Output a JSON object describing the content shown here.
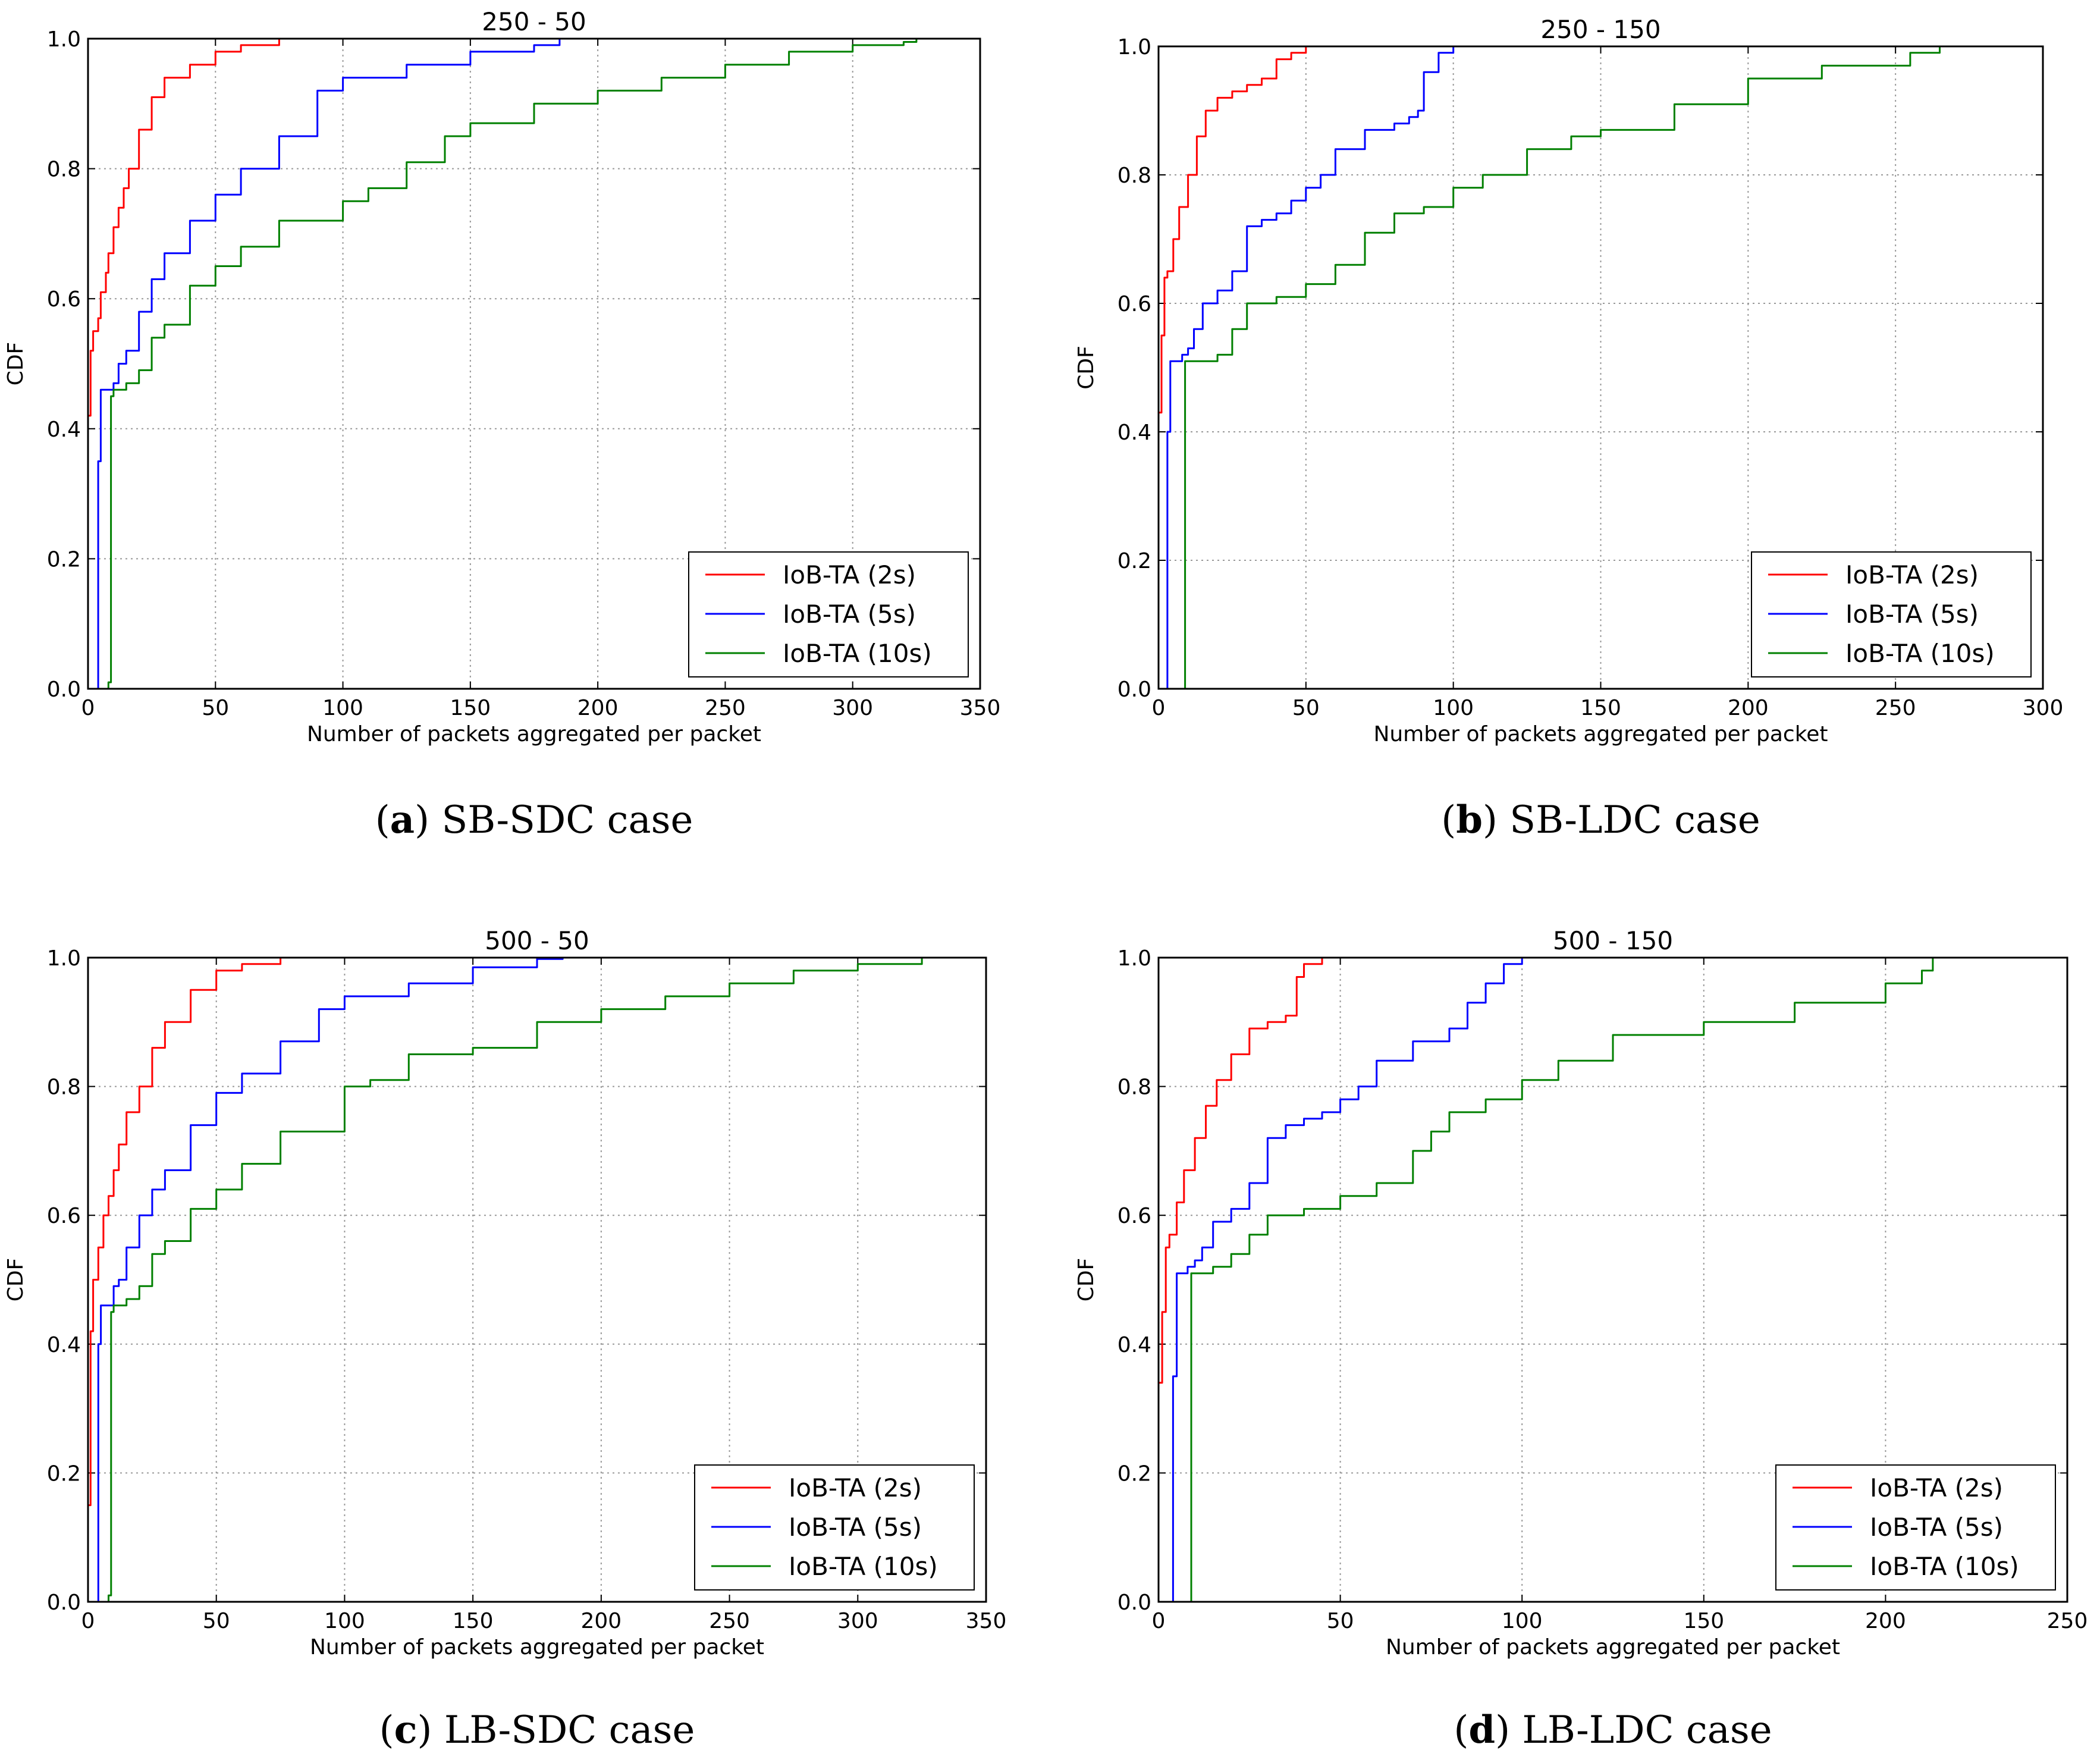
{
  "chart_data": [
    {
      "type": "line",
      "title": "250 - 50",
      "xlabel": "Number of packets aggregated per packet",
      "ylabel": "CDF",
      "xlim": [
        0,
        350
      ],
      "ylim": [
        0,
        1
      ],
      "xticks": [
        "0",
        "50",
        "100",
        "150",
        "200",
        "250",
        "300",
        "350"
      ],
      "yticks": [
        "0.0",
        "0.2",
        "0.4",
        "0.6",
        "0.8",
        "1.0"
      ],
      "caption": {
        "letter": "a",
        "text": "SB-SDC case"
      },
      "legend_position": "lower-right",
      "series": [
        {
          "name": "IoB-TA (2s)",
          "color": "#ff0000",
          "x": [
            0,
            1,
            2,
            4,
            5,
            7,
            8,
            10,
            12,
            14,
            16,
            20,
            25,
            30,
            40,
            50,
            60,
            75
          ],
          "y": [
            0.42,
            0.52,
            0.55,
            0.57,
            0.61,
            0.64,
            0.67,
            0.71,
            0.74,
            0.77,
            0.8,
            0.86,
            0.91,
            0.94,
            0.96,
            0.98,
            0.99,
            1.0
          ]
        },
        {
          "name": "IoB-TA (5s)",
          "color": "#0000ff",
          "x": [
            1,
            3,
            4,
            5,
            8,
            10,
            12,
            15,
            20,
            25,
            30,
            40,
            50,
            60,
            75,
            90,
            100,
            125,
            150,
            175,
            185
          ],
          "y": [
            0.0,
            0.0,
            0.35,
            0.46,
            0.46,
            0.47,
            0.5,
            0.52,
            0.58,
            0.63,
            0.67,
            0.72,
            0.76,
            0.8,
            0.85,
            0.92,
            0.94,
            0.96,
            0.98,
            0.99,
            1.0
          ]
        },
        {
          "name": "IoB-TA (10s)",
          "color": "#008000",
          "x": [
            0,
            5,
            8,
            9,
            10,
            15,
            20,
            25,
            30,
            40,
            50,
            60,
            75,
            100,
            110,
            125,
            140,
            150,
            175,
            200,
            225,
            250,
            275,
            300,
            320,
            325
          ],
          "y": [
            0.0,
            0.0,
            0.01,
            0.45,
            0.46,
            0.47,
            0.49,
            0.54,
            0.56,
            0.62,
            0.65,
            0.68,
            0.72,
            0.75,
            0.77,
            0.81,
            0.85,
            0.87,
            0.9,
            0.92,
            0.94,
            0.96,
            0.98,
            0.99,
            0.995,
            1.0
          ]
        }
      ]
    },
    {
      "type": "line",
      "title": "250 - 150",
      "xlabel": "Number of packets aggregated per packet",
      "ylabel": "CDF",
      "xlim": [
        0,
        300
      ],
      "ylim": [
        0,
        1
      ],
      "xticks": [
        "0",
        "50",
        "100",
        "150",
        "200",
        "250",
        "300"
      ],
      "yticks": [
        "0.0",
        "0.2",
        "0.4",
        "0.6",
        "0.8",
        "1.0"
      ],
      "caption": {
        "letter": "b",
        "text": "SB-LDC case"
      },
      "legend_position": "lower-right",
      "series": [
        {
          "name": "IoB-TA (2s)",
          "color": "#ff0000",
          "x": [
            0,
            1,
            2,
            3,
            5,
            7,
            10,
            13,
            16,
            20,
            25,
            30,
            35,
            40,
            45,
            50
          ],
          "y": [
            0.43,
            0.55,
            0.64,
            0.65,
            0.7,
            0.75,
            0.8,
            0.86,
            0.9,
            0.92,
            0.93,
            0.94,
            0.95,
            0.98,
            0.99,
            1.0
          ]
        },
        {
          "name": "IoB-TA (5s)",
          "color": "#0000ff",
          "x": [
            2,
            3,
            4,
            5,
            8,
            10,
            12,
            15,
            20,
            25,
            30,
            35,
            40,
            45,
            50,
            55,
            60,
            70,
            80,
            85,
            88,
            90,
            95,
            100
          ],
          "y": [
            0.0,
            0.4,
            0.51,
            0.51,
            0.52,
            0.53,
            0.56,
            0.6,
            0.62,
            0.65,
            0.72,
            0.73,
            0.74,
            0.76,
            0.78,
            0.8,
            0.84,
            0.87,
            0.88,
            0.89,
            0.9,
            0.96,
            0.99,
            1.0
          ]
        },
        {
          "name": "IoB-TA (10s)",
          "color": "#008000",
          "x": [
            7,
            8,
            9,
            10,
            20,
            25,
            30,
            40,
            50,
            60,
            70,
            80,
            90,
            100,
            110,
            125,
            140,
            150,
            175,
            200,
            225,
            245,
            255,
            265
          ],
          "y": [
            0.0,
            0.0,
            0.51,
            0.51,
            0.52,
            0.56,
            0.6,
            0.61,
            0.63,
            0.66,
            0.71,
            0.74,
            0.75,
            0.78,
            0.8,
            0.84,
            0.86,
            0.87,
            0.91,
            0.95,
            0.97,
            0.97,
            0.99,
            1.0
          ]
        }
      ]
    },
    {
      "type": "line",
      "title": "500 - 50",
      "xlabel": "Number of packets aggregated per packet",
      "ylabel": "CDF",
      "xlim": [
        0,
        350
      ],
      "ylim": [
        0,
        1
      ],
      "xticks": [
        "0",
        "50",
        "100",
        "150",
        "200",
        "250",
        "300",
        "350"
      ],
      "yticks": [
        "0.0",
        "0.2",
        "0.4",
        "0.6",
        "0.8",
        "1.0"
      ],
      "caption": {
        "letter": "c",
        "text": "LB-SDC case"
      },
      "legend_position": "lower-right",
      "series": [
        {
          "name": "IoB-TA (2s)",
          "color": "#ff0000",
          "x": [
            0,
            1,
            2,
            4,
            6,
            8,
            10,
            12,
            15,
            20,
            25,
            30,
            40,
            50,
            60,
            75
          ],
          "y": [
            0.15,
            0.42,
            0.5,
            0.55,
            0.6,
            0.63,
            0.67,
            0.71,
            0.76,
            0.8,
            0.86,
            0.9,
            0.95,
            0.98,
            0.99,
            1.0
          ]
        },
        {
          "name": "IoB-TA (5s)",
          "color": "#0000ff",
          "x": [
            2,
            3,
            4,
            5,
            8,
            10,
            12,
            15,
            20,
            25,
            30,
            40,
            50,
            60,
            75,
            90,
            100,
            125,
            150,
            175,
            185
          ],
          "y": [
            0.0,
            0.0,
            0.4,
            0.46,
            0.46,
            0.49,
            0.5,
            0.55,
            0.6,
            0.64,
            0.67,
            0.74,
            0.79,
            0.82,
            0.87,
            0.92,
            0.94,
            0.96,
            0.985,
            0.998,
            1.0
          ]
        },
        {
          "name": "IoB-TA (10s)",
          "color": "#008000",
          "x": [
            3,
            7,
            8,
            9,
            10,
            15,
            20,
            25,
            30,
            40,
            50,
            60,
            75,
            100,
            110,
            125,
            150,
            175,
            200,
            225,
            250,
            275,
            300,
            325,
            350
          ],
          "y": [
            0.0,
            0.0,
            0.01,
            0.45,
            0.46,
            0.47,
            0.49,
            0.54,
            0.56,
            0.61,
            0.64,
            0.68,
            0.73,
            0.8,
            0.81,
            0.85,
            0.86,
            0.9,
            0.92,
            0.94,
            0.96,
            0.98,
            0.99,
            1.0,
            1.0
          ]
        }
      ]
    },
    {
      "type": "line",
      "title": "500 - 150",
      "xlabel": "Number of packets aggregated per packet",
      "ylabel": "CDF",
      "xlim": [
        0,
        250
      ],
      "ylim": [
        0,
        1
      ],
      "xticks": [
        "0",
        "50",
        "100",
        "150",
        "200",
        "250"
      ],
      "yticks": [
        "0.0",
        "0.2",
        "0.4",
        "0.6",
        "0.8",
        "1.0"
      ],
      "caption": {
        "letter": "d",
        "text": "LB-LDC case"
      },
      "legend_position": "lower-right",
      "series": [
        {
          "name": "IoB-TA (2s)",
          "color": "#ff0000",
          "x": [
            0,
            1,
            2,
            3,
            5,
            7,
            10,
            13,
            16,
            20,
            25,
            30,
            35,
            38,
            40,
            45
          ],
          "y": [
            0.34,
            0.45,
            0.55,
            0.57,
            0.62,
            0.67,
            0.72,
            0.77,
            0.81,
            0.85,
            0.89,
            0.9,
            0.91,
            0.97,
            0.99,
            1.0
          ]
        },
        {
          "name": "IoB-TA (5s)",
          "color": "#0000ff",
          "x": [
            3,
            4,
            5,
            8,
            10,
            12,
            15,
            20,
            25,
            30,
            35,
            40,
            45,
            50,
            55,
            60,
            70,
            80,
            85,
            90,
            95,
            100
          ],
          "y": [
            0.0,
            0.35,
            0.51,
            0.52,
            0.53,
            0.55,
            0.59,
            0.61,
            0.65,
            0.72,
            0.74,
            0.75,
            0.76,
            0.78,
            0.8,
            0.84,
            0.87,
            0.89,
            0.93,
            0.96,
            0.99,
            1.0
          ]
        },
        {
          "name": "IoB-TA (10s)",
          "color": "#008000",
          "x": [
            7,
            8,
            9,
            15,
            20,
            25,
            30,
            40,
            50,
            60,
            70,
            75,
            80,
            90,
            100,
            110,
            125,
            150,
            175,
            200,
            210,
            213
          ],
          "y": [
            0.0,
            0.0,
            0.51,
            0.52,
            0.54,
            0.57,
            0.6,
            0.61,
            0.63,
            0.65,
            0.7,
            0.73,
            0.76,
            0.78,
            0.81,
            0.84,
            0.88,
            0.9,
            0.93,
            0.96,
            0.98,
            1.0
          ]
        }
      ]
    }
  ]
}
